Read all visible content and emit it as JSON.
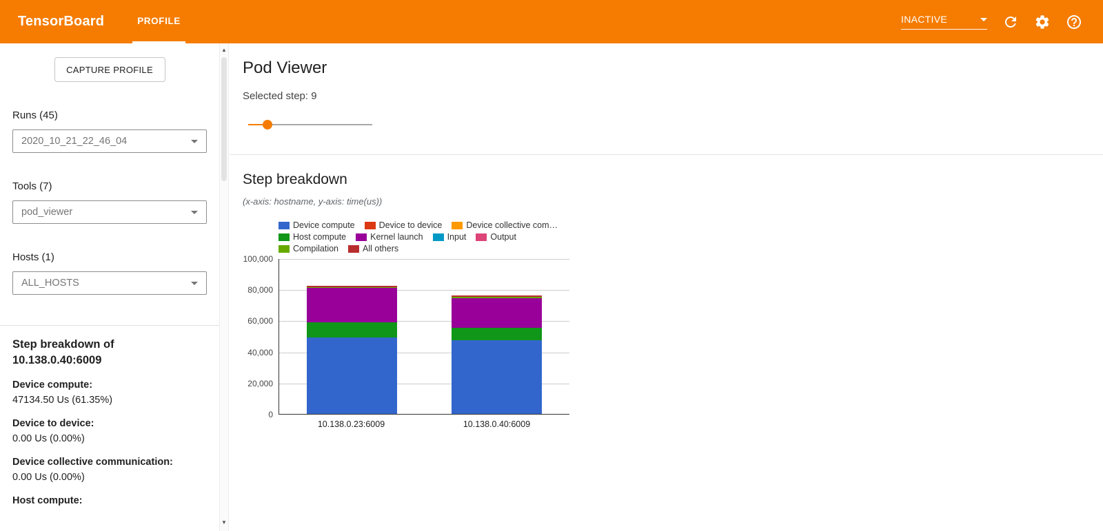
{
  "theme": {
    "header_color": "#f57c00"
  },
  "header": {
    "title": "TensorBoard",
    "tab": "PROFILE",
    "status_value": "INACTIVE",
    "icons": [
      "dropdown-caret-icon",
      "refresh-icon",
      "gear-icon",
      "help-icon"
    ]
  },
  "sidebar": {
    "capture_button": "CAPTURE PROFILE",
    "runs": {
      "label": "Runs (45)",
      "value": "2020_10_21_22_46_04"
    },
    "tools": {
      "label": "Tools (7)",
      "value": "pod_viewer"
    },
    "hosts": {
      "label": "Hosts (1)",
      "value": "ALL_HOSTS"
    },
    "breakdown": {
      "title_line1": "Step breakdown of",
      "title_line2": "10.138.0.40:6009",
      "stats": [
        {
          "label": "Device compute:",
          "value": "47134.50 Us (61.35%)"
        },
        {
          "label": "Device to device:",
          "value": "0.00 Us (0.00%)"
        },
        {
          "label": "Device collective communication:",
          "value": "0.00 Us (0.00%)"
        },
        {
          "label": "Host compute:",
          "value": ""
        }
      ]
    }
  },
  "main": {
    "title": "Pod Viewer",
    "selected_step": "Selected step: 9",
    "section_title": "Step breakdown",
    "section_subtitle": "(x-axis: hostname, y-axis: time(us))"
  },
  "chart_data": {
    "type": "bar",
    "stacked": true,
    "title": "Step breakdown",
    "xlabel": "hostname",
    "ylabel": "time(us)",
    "categories": [
      "10.138.0.23:6009",
      "10.138.0.40:6009"
    ],
    "series": [
      {
        "name": "Device compute",
        "color": "#3366cc",
        "values": [
          49000,
          47134.5
        ]
      },
      {
        "name": "Device to device",
        "color": "#dc3912",
        "values": [
          0,
          0
        ]
      },
      {
        "name": "Device collective com…",
        "color": "#ff9900",
        "values": [
          0,
          0
        ]
      },
      {
        "name": "Host compute",
        "color": "#109618",
        "values": [
          9700,
          8300
        ]
      },
      {
        "name": "Kernel launch",
        "color": "#990099",
        "values": [
          22300,
          18700
        ]
      },
      {
        "name": "Input",
        "color": "#0099c6",
        "values": [
          0,
          0
        ]
      },
      {
        "name": "Output",
        "color": "#dd4477",
        "values": [
          0,
          0
        ]
      },
      {
        "name": "Compilation",
        "color": "#66aa00",
        "values": [
          300,
          900
        ]
      },
      {
        "name": "All others",
        "color": "#b82e2e",
        "values": [
          1200,
          900
        ]
      }
    ],
    "ylim": [
      0,
      100000
    ],
    "yticks": [
      0,
      20000,
      40000,
      60000,
      80000,
      100000
    ],
    "legend_rows": [
      [
        0,
        1,
        2
      ],
      [
        3,
        4,
        5,
        6
      ],
      [
        7,
        8
      ]
    ],
    "grid": true,
    "legend_position": "top"
  }
}
